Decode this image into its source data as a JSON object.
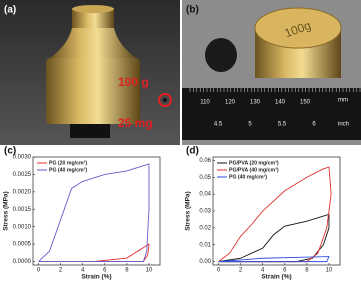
{
  "panels": {
    "a": {
      "label": "(a)",
      "weight_large": "100 g",
      "weight_small": "25 mg"
    },
    "b": {
      "label": "(b)",
      "engraving": "100g",
      "ruler_mm": [
        "110",
        "120",
        "130",
        "140",
        "150"
      ],
      "mm_unit": "mm",
      "ruler_inch": [
        "4.5",
        "5",
        "5.5",
        "6"
      ],
      "inch_unit": "inch"
    }
  },
  "chart_data": [
    {
      "type": "line",
      "panel": "(c)",
      "x_label": "Strain (%)",
      "y_label": "Stress (MPa)",
      "xlim": [
        -0.5,
        11
      ],
      "xticks": [
        0,
        2,
        4,
        6,
        8,
        10
      ],
      "ylim": [
        -0.0001,
        0.003
      ],
      "yticks": [
        {
          "value": 0,
          "label": "0.0000"
        },
        0.0005,
        {
          "value": 0.001,
          "label": "0.0010"
        },
        0.0015,
        {
          "value": 0.002,
          "label": "0.0020"
        },
        0.0025,
        {
          "value": 0.003,
          "label": "0.0030"
        }
      ],
      "legend": "upper left",
      "series": [
        {
          "name": "PG (20 mg/cm³)",
          "color": "#e03030",
          "x": [
            0,
            5,
            8,
            9,
            10,
            9.9,
            9.5,
            7,
            0
          ],
          "values": [
            0,
            0,
            0.0001,
            0.0003,
            0.0005,
            0.0002,
            0,
            0,
            0
          ]
        },
        {
          "name": "PG (40 mg/cm³)",
          "color": "#6a5acd",
          "x": [
            0,
            1,
            2,
            3,
            4,
            6,
            8,
            10,
            10,
            9.8,
            9.5,
            5,
            0
          ],
          "values": [
            0,
            0.0003,
            0.0012,
            0.0021,
            0.0023,
            0.0025,
            0.0026,
            0.0028,
            0.0015,
            0.0003,
            0,
            0,
            0
          ]
        }
      ]
    },
    {
      "type": "line",
      "panel": "(d)",
      "x_label": "Strain (%)",
      "y_label": "Stress (MPa)",
      "xlim": [
        -0.5,
        11
      ],
      "xticks": [
        0,
        2,
        4,
        6,
        8,
        10
      ],
      "ylim": [
        -0.002,
        0.062
      ],
      "yticks": [
        {
          "value": 0,
          "label": "0.00"
        },
        0.01,
        0.02,
        0.03,
        0.04,
        0.05,
        0.06
      ],
      "legend": "upper left",
      "series": [
        {
          "name": "PG/PVA (20 mg/cm³)",
          "color": "#111111",
          "x": [
            0,
            2,
            4,
            5,
            6,
            8,
            10,
            10,
            9.5,
            8.5,
            7,
            0
          ],
          "values": [
            0,
            0.002,
            0.008,
            0.016,
            0.021,
            0.024,
            0.028,
            0.02,
            0.01,
            0.002,
            0,
            0
          ]
        },
        {
          "name": "PG/PVA (40 mg/cm³)",
          "color": "#e03030",
          "x": [
            0,
            1,
            2,
            3,
            4,
            6,
            8,
            9.5,
            10,
            10.2,
            9.8,
            9,
            8,
            0
          ],
          "values": [
            0,
            0.005,
            0.015,
            0.022,
            0.03,
            0.042,
            0.05,
            0.055,
            0.056,
            0.04,
            0.02,
            0.005,
            0,
            0
          ]
        },
        {
          "name": "PG (40 mg/cm³)",
          "color": "#3050e0",
          "x": [
            0,
            4,
            10,
            9.8,
            0
          ],
          "values": [
            0,
            0.002,
            0.003,
            0,
            0
          ]
        }
      ]
    }
  ]
}
